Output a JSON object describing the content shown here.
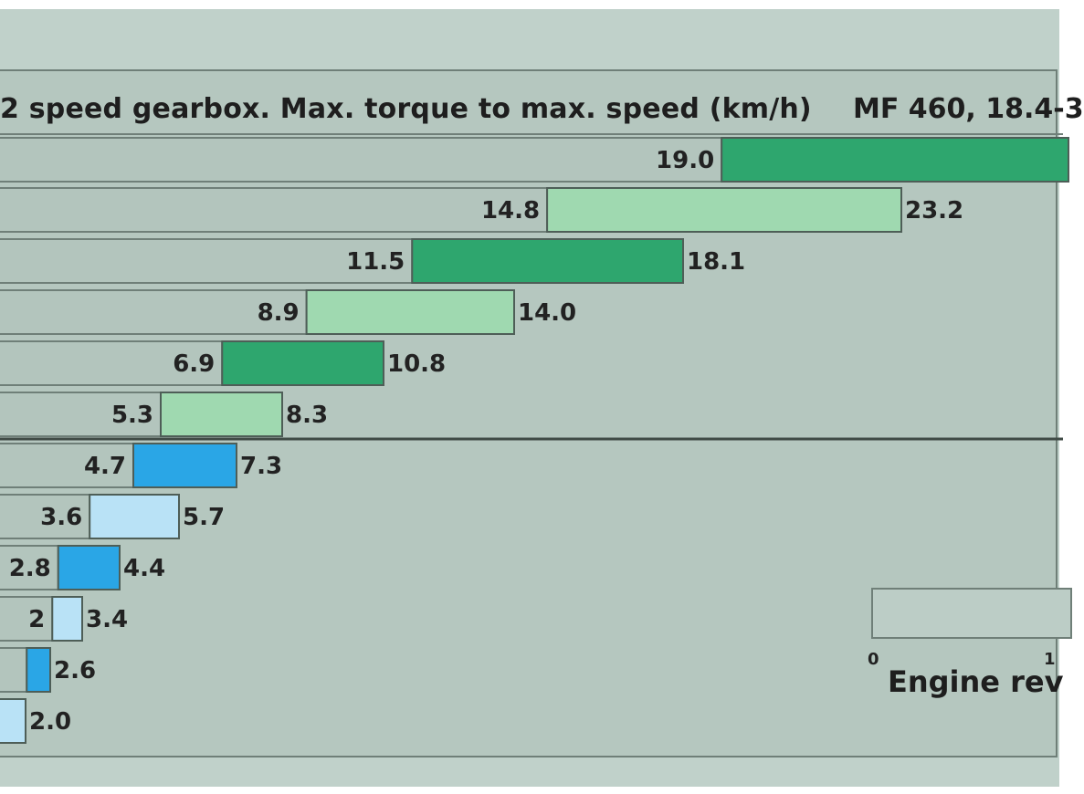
{
  "chart_data": {
    "type": "bar",
    "subtype": "floating-range",
    "title": "2 speed gearbox. Max. torque to max. speed (km/h)",
    "subtitle": "MF 460, 18.4-3",
    "ranges": [
      {
        "low": 19.0,
        "high": null,
        "low_label": "19.0",
        "high_label": "",
        "color": "#2ea66e"
      },
      {
        "low": 14.8,
        "high": 23.2,
        "low_label": "14.8",
        "high_label": "23.2",
        "color": "#9fd9b0"
      },
      {
        "low": 11.5,
        "high": 18.1,
        "low_label": "11.5",
        "high_label": "18.1",
        "color": "#2ea66e"
      },
      {
        "low": 8.9,
        "high": 14.0,
        "low_label": "8.9",
        "high_label": "14.0",
        "color": "#9fd9b0"
      },
      {
        "low": 6.9,
        "high": 10.8,
        "low_label": "6.9",
        "high_label": "10.8",
        "color": "#2ea66e"
      },
      {
        "low": 5.3,
        "high": 8.3,
        "low_label": "5.3",
        "high_label": "8.3",
        "color": "#9fd9b0"
      },
      {
        "low": 4.7,
        "high": 7.3,
        "low_label": "4.7",
        "high_label": "7.3",
        "color": "#2aa6e6"
      },
      {
        "low": 3.6,
        "high": 5.7,
        "low_label": "3.6",
        "high_label": "5.7",
        "color": "#b9e2f6"
      },
      {
        "low": 2.8,
        "high": 4.4,
        "low_label": "2.8",
        "high_label": "4.4",
        "color": "#2aa6e6"
      },
      {
        "low": null,
        "high": 3.4,
        "low_label": "2",
        "high_label": "3.4",
        "color": "#b9e2f6"
      },
      {
        "low": null,
        "high": 2.6,
        "low_label": "",
        "high_label": "2.6",
        "color": "#2aa6e6"
      },
      {
        "low": null,
        "high": 2.0,
        "low_label": "",
        "high_label": "2.0",
        "color": "#b9e2f6"
      }
    ],
    "legend": {
      "label": "Engine rev",
      "ticks": [
        "0",
        "1"
      ]
    }
  }
}
